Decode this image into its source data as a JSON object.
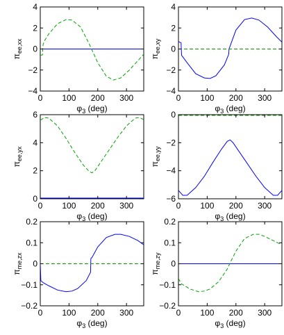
{
  "figure": {
    "colors": {
      "blue": "#0000ff",
      "green": "#00a000"
    },
    "styles": {
      "blue": "solid",
      "green": "dashed"
    }
  },
  "chart_data": [
    {
      "type": "line",
      "xlabel": "φ3 (deg)",
      "ylabel": "πee,xx",
      "ylabel_base": "π",
      "ylabel_sub": "ee,xx",
      "xlim": [
        0,
        360
      ],
      "ylim": [
        -4,
        4
      ],
      "xticks": [
        0,
        100,
        200,
        300
      ],
      "yticks": [
        -4,
        -2,
        0,
        2,
        4
      ],
      "series": [
        {
          "color": "blue",
          "style": "solid",
          "x": [
            0,
            360
          ],
          "y": [
            0,
            0
          ]
        },
        {
          "color": "green",
          "style": "dashed",
          "x": [
            0,
            8,
            9,
            10,
            15,
            30,
            60,
            90,
            110,
            140,
            170,
            200,
            230,
            255,
            280,
            310,
            340,
            360
          ],
          "y": [
            -0.6,
            -0.55,
            0.2,
            0.45,
            0.8,
            1.45,
            2.4,
            2.8,
            2.75,
            2.1,
            0.5,
            -1.3,
            -2.6,
            -2.95,
            -2.75,
            -2.0,
            -1.1,
            -0.5
          ]
        }
      ]
    },
    {
      "type": "line",
      "xlabel": "φ3 (deg)",
      "ylabel": "πee,xy",
      "ylabel_base": "π",
      "ylabel_sub": "ee,xy",
      "xlim": [
        0,
        360
      ],
      "ylim": [
        -4,
        4
      ],
      "xticks": [
        0,
        100,
        200,
        300
      ],
      "yticks": [
        -4,
        -2,
        0,
        2,
        4
      ],
      "series": [
        {
          "color": "blue",
          "style": "solid",
          "x": [
            0,
            9,
            10,
            11,
            30,
            60,
            90,
            110,
            130,
            160,
            175,
            176,
            200,
            230,
            255,
            280,
            310,
            340,
            360
          ],
          "y": [
            0.7,
            0.6,
            -0.1,
            -0.6,
            -1.3,
            -2.35,
            -2.75,
            -2.8,
            -2.55,
            -1.5,
            -0.5,
            0,
            1.8,
            2.8,
            2.95,
            2.75,
            2.1,
            1.2,
            0.65
          ]
        },
        {
          "color": "green",
          "style": "dashed",
          "x": [
            0,
            360
          ],
          "y": [
            0,
            0
          ]
        }
      ]
    },
    {
      "type": "line",
      "xlabel": "φ3 (deg)",
      "ylabel": "πee,yx",
      "ylabel_base": "π",
      "ylabel_sub": "ee,yx",
      "xlim": [
        0,
        360
      ],
      "ylim": [
        0,
        6
      ],
      "xticks": [
        0,
        100,
        200,
        300
      ],
      "yticks": [
        0,
        2,
        4,
        6
      ],
      "series": [
        {
          "color": "blue",
          "style": "solid",
          "x": [
            0,
            360
          ],
          "y": [
            0.05,
            0.05
          ]
        },
        {
          "color": "green",
          "style": "dashed",
          "x": [
            0,
            15,
            30,
            60,
            90,
            120,
            150,
            170,
            180,
            190,
            210,
            240,
            270,
            300,
            330,
            345,
            360
          ],
          "y": [
            5.6,
            5.8,
            5.75,
            5.2,
            4.3,
            3.3,
            2.4,
            1.95,
            1.85,
            2.0,
            2.6,
            3.5,
            4.4,
            5.2,
            5.75,
            5.8,
            5.65
          ]
        }
      ]
    },
    {
      "type": "line",
      "xlabel": "φ3 (deg)",
      "ylabel": "πee,yy",
      "ylabel_base": "π",
      "ylabel_sub": "ee,yy",
      "xlim": [
        0,
        360
      ],
      "ylim": [
        -6,
        0
      ],
      "xticks": [
        0,
        100,
        200,
        300
      ],
      "yticks": [
        -6,
        -4,
        -2,
        0
      ],
      "series": [
        {
          "color": "blue",
          "style": "solid",
          "x": [
            0,
            15,
            30,
            60,
            90,
            120,
            150,
            170,
            180,
            190,
            210,
            240,
            270,
            300,
            330,
            345,
            360
          ],
          "y": [
            -5.4,
            -5.75,
            -5.75,
            -5.2,
            -4.4,
            -3.4,
            -2.45,
            -1.9,
            -1.8,
            -2.0,
            -2.6,
            -3.5,
            -4.4,
            -5.2,
            -5.75,
            -5.75,
            -5.4
          ]
        },
        {
          "color": "green",
          "style": "dashed",
          "x": [
            0,
            360
          ],
          "y": [
            -0.05,
            -0.05
          ]
        }
      ]
    },
    {
      "type": "line",
      "xlabel": "φ3 (deg)",
      "ylabel": "πme,zx",
      "ylabel_base": "π",
      "ylabel_sub": "me,zx",
      "xlim": [
        0,
        360
      ],
      "ylim": [
        -0.2,
        0.2
      ],
      "xticks": [
        0,
        100,
        200,
        300
      ],
      "yticks": [
        -0.2,
        -0.1,
        0,
        0.1,
        0.2
      ],
      "series": [
        {
          "color": "blue",
          "style": "solid",
          "x": [
            0,
            2,
            10,
            30,
            60,
            90,
            110,
            130,
            160,
            175,
            176,
            180,
            200,
            230,
            260,
            280,
            310,
            340,
            360
          ],
          "y": [
            0.0,
            -0.08,
            -0.09,
            -0.105,
            -0.125,
            -0.133,
            -0.13,
            -0.118,
            -0.08,
            -0.04,
            0.025,
            0.03,
            0.08,
            0.125,
            0.14,
            0.14,
            0.13,
            0.11,
            0.09
          ]
        },
        {
          "color": "green",
          "style": "dashed",
          "x": [
            0,
            360
          ],
          "y": [
            0,
            0
          ]
        }
      ]
    },
    {
      "type": "line",
      "xlabel": "φ3 (deg)",
      "ylabel": "πme,zy",
      "ylabel_base": "π",
      "ylabel_sub": "me,zy",
      "xlim": [
        0,
        360
      ],
      "ylim": [
        -0.2,
        0.2
      ],
      "xticks": [
        0,
        100,
        200,
        300
      ],
      "yticks": [
        -0.2,
        -0.1,
        0,
        0.1,
        0.2
      ],
      "series": [
        {
          "color": "blue",
          "style": "solid",
          "x": [
            0,
            360
          ],
          "y": [
            0,
            0
          ]
        },
        {
          "color": "green",
          "style": "dashed",
          "x": [
            0,
            10,
            40,
            70,
            90,
            110,
            140,
            170,
            180,
            200,
            230,
            260,
            280,
            300,
            330,
            360
          ],
          "y": [
            -0.07,
            -0.095,
            -0.12,
            -0.133,
            -0.13,
            -0.12,
            -0.085,
            -0.025,
            0.005,
            0.06,
            0.12,
            0.14,
            0.14,
            0.13,
            0.11,
            0.09
          ]
        }
      ]
    }
  ]
}
